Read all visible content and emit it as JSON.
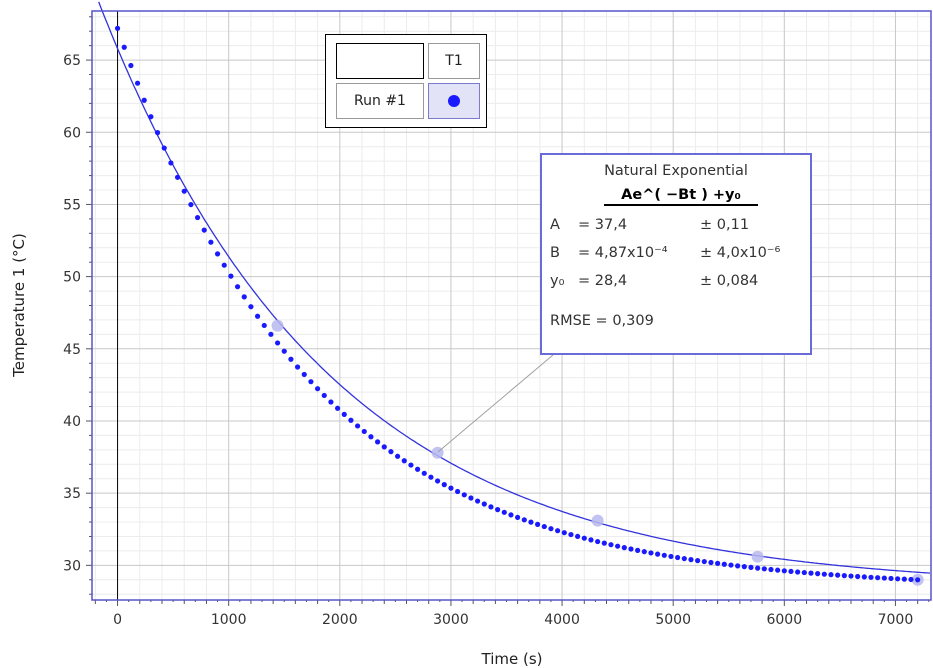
{
  "chart_data": {
    "type": "scatter",
    "xlabel": "Time (s)",
    "ylabel": "Temperature 1 (°C)",
    "xlim": [
      -230,
      7320
    ],
    "ylim": [
      27.6,
      68.4
    ],
    "x_ticks": [
      0,
      1000,
      2000,
      3000,
      4000,
      5000,
      6000,
      7000
    ],
    "y_ticks": [
      30,
      35,
      40,
      45,
      50,
      55,
      60,
      65
    ],
    "x_tick_labels": [
      "0",
      "1000",
      "2000",
      "3000",
      "4000",
      "5000",
      "6000",
      "7000"
    ],
    "y_tick_labels": [
      "30",
      "35",
      "40",
      "45",
      "50",
      "55",
      "60",
      "65"
    ],
    "grid": true,
    "series": [
      {
        "name": "Run #1",
        "marker": "circle",
        "color": "#1a1aff",
        "x_start": 0,
        "x_step": 60,
        "count": 121,
        "first_y": 67.2,
        "last_y": 29.0,
        "highlighted_points": [
          {
            "x": 1440,
            "y": 46.6
          },
          {
            "x": 2880,
            "y": 37.8
          },
          {
            "x": 4320,
            "y": 33.1
          },
          {
            "x": 5760,
            "y": 30.6
          },
          {
            "x": 7200,
            "y": 29.0
          }
        ]
      }
    ],
    "fit": {
      "name": "Natural Exponential",
      "equation": "Ae^( −Bt ) +y₀",
      "A": 37.4,
      "B": 0.000487,
      "y0": 28.4,
      "color": "#3333dd"
    }
  },
  "legend": {
    "run_header": "",
    "series_header": "T1",
    "run_name": "Run #1",
    "marker_icon": "filled-circle-marker"
  },
  "fit_box": {
    "title": "Natural Exponential",
    "equation": "Ae^( −Bt ) +y₀",
    "params": [
      {
        "name": "A",
        "value": "= 37,4",
        "error": "± 0,11"
      },
      {
        "name": "B",
        "value": "= 4,87x10⁻⁴",
        "error": "± 4,0x10⁻⁶"
      },
      {
        "name": "y₀",
        "value": "= 28,4",
        "error": "± 0,084"
      }
    ],
    "rmse": "RMSE = 0,309"
  },
  "colors": {
    "data": "#1a1aff",
    "fit_line": "#3333dd",
    "grid_major": "#c8c8c8",
    "grid_minor": "#ececec",
    "axis_frame": "#5555cc"
  }
}
